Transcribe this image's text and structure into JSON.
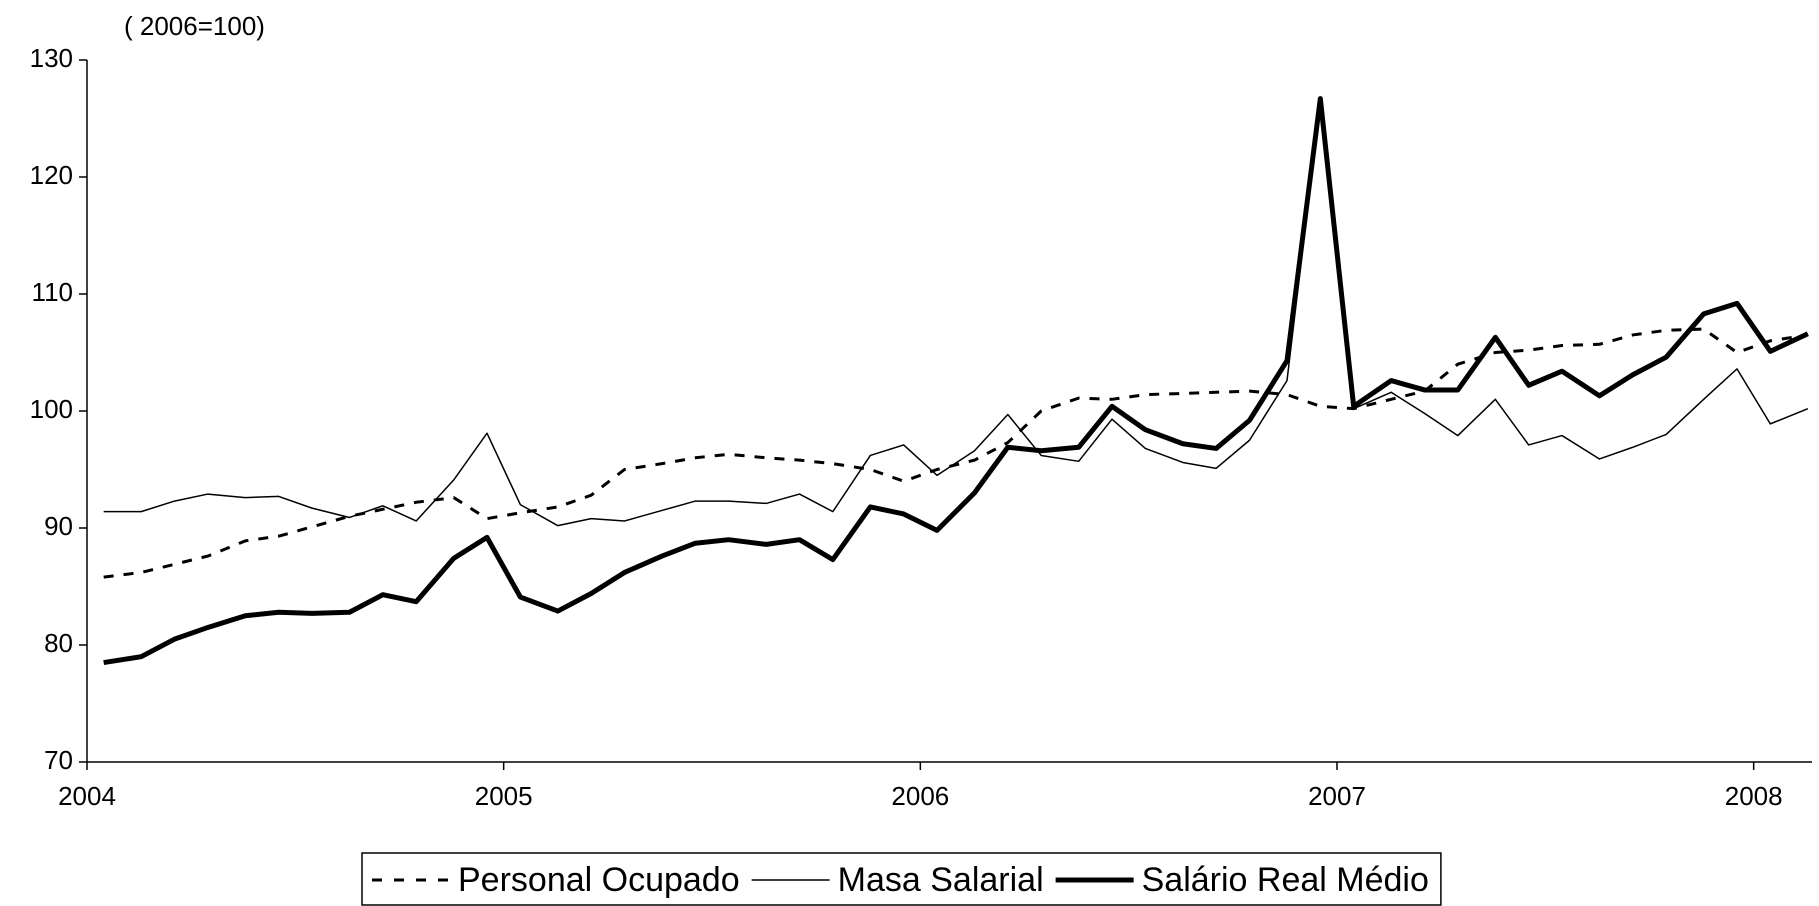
{
  "chart_data": {
    "type": "line",
    "subtitle": "( 2006=100)",
    "x": [
      2004.04,
      2004.13,
      2004.21,
      2004.29,
      2004.38,
      2004.46,
      2004.54,
      2004.63,
      2004.71,
      2004.79,
      2004.88,
      2004.96,
      2005.04,
      2005.13,
      2005.21,
      2005.29,
      2005.38,
      2005.46,
      2005.54,
      2005.63,
      2005.71,
      2005.79,
      2005.88,
      2005.96,
      2006.04,
      2006.13,
      2006.21,
      2006.29,
      2006.38,
      2006.46,
      2006.54,
      2006.63,
      2006.71,
      2006.79,
      2006.88,
      2006.96,
      2007.04,
      2007.13,
      2007.21,
      2007.29,
      2007.38,
      2007.46,
      2007.54,
      2007.63,
      2007.71,
      2007.79,
      2007.88,
      2007.96,
      2008.04,
      2008.13
    ],
    "xlim": [
      2004,
      2008.14
    ],
    "xticks": [
      2004,
      2005,
      2006,
      2007,
      2008
    ],
    "ylim": [
      70,
      130
    ],
    "yticks": [
      70,
      80,
      90,
      100,
      110,
      120,
      130
    ],
    "series": [
      {
        "name": "Personal Ocupado",
        "color": "#000000",
        "width": 3,
        "dashed": true,
        "values": [
          85.8,
          86.2,
          86.9,
          87.6,
          88.9,
          89.3,
          90.1,
          91.0,
          91.6,
          92.2,
          92.6,
          90.8,
          91.3,
          91.8,
          92.8,
          95.0,
          95.5,
          96.0,
          96.3,
          96.0,
          95.8,
          95.5,
          95.0,
          94.0,
          95.0,
          95.8,
          97.3,
          100.0,
          101.1,
          101.0,
          101.4,
          101.5,
          101.6,
          101.7,
          101.4,
          100.4,
          100.2,
          101.0,
          101.7,
          104.0,
          105.0,
          105.2,
          105.6,
          105.7,
          106.5,
          106.9,
          107.0,
          105.0,
          106.0,
          106.5
        ]
      },
      {
        "name": "Masa Salarial",
        "color": "#000000",
        "width": 1.5,
        "dashed": false,
        "values": [
          91.4,
          91.4,
          92.3,
          92.9,
          92.6,
          92.7,
          91.7,
          90.9,
          91.9,
          90.6,
          94.1,
          98.1,
          92.0,
          90.2,
          90.8,
          90.6,
          91.5,
          92.3,
          92.3,
          92.1,
          92.9,
          91.4,
          96.2,
          97.1,
          94.5,
          96.6,
          99.7,
          96.2,
          95.7,
          99.3,
          96.8,
          95.6,
          95.1,
          97.5,
          102.6,
          126.5,
          100.2,
          101.6,
          99.8,
          97.9,
          101.0,
          97.1,
          97.9,
          95.9,
          96.9,
          98.0,
          101.0,
          103.6,
          98.9,
          100.2
        ]
      },
      {
        "name": "Salário Real Médio",
        "color": "#000000",
        "width": 5,
        "dashed": false,
        "values": [
          78.5,
          79.0,
          80.5,
          81.5,
          82.5,
          82.8,
          82.7,
          82.8,
          84.3,
          83.7,
          87.4,
          89.2,
          84.1,
          82.9,
          84.4,
          86.2,
          87.6,
          88.7,
          89.0,
          88.6,
          89.0,
          87.3,
          91.8,
          91.2,
          89.8,
          93.0,
          96.9,
          96.6,
          96.9,
          100.4,
          98.4,
          97.2,
          96.8,
          99.2,
          104.3,
          126.7,
          100.4,
          102.6,
          101.8,
          101.8,
          106.3,
          102.2,
          103.4,
          101.3,
          103.1,
          104.6,
          108.3,
          109.2,
          105.1,
          106.6
        ]
      }
    ]
  }
}
